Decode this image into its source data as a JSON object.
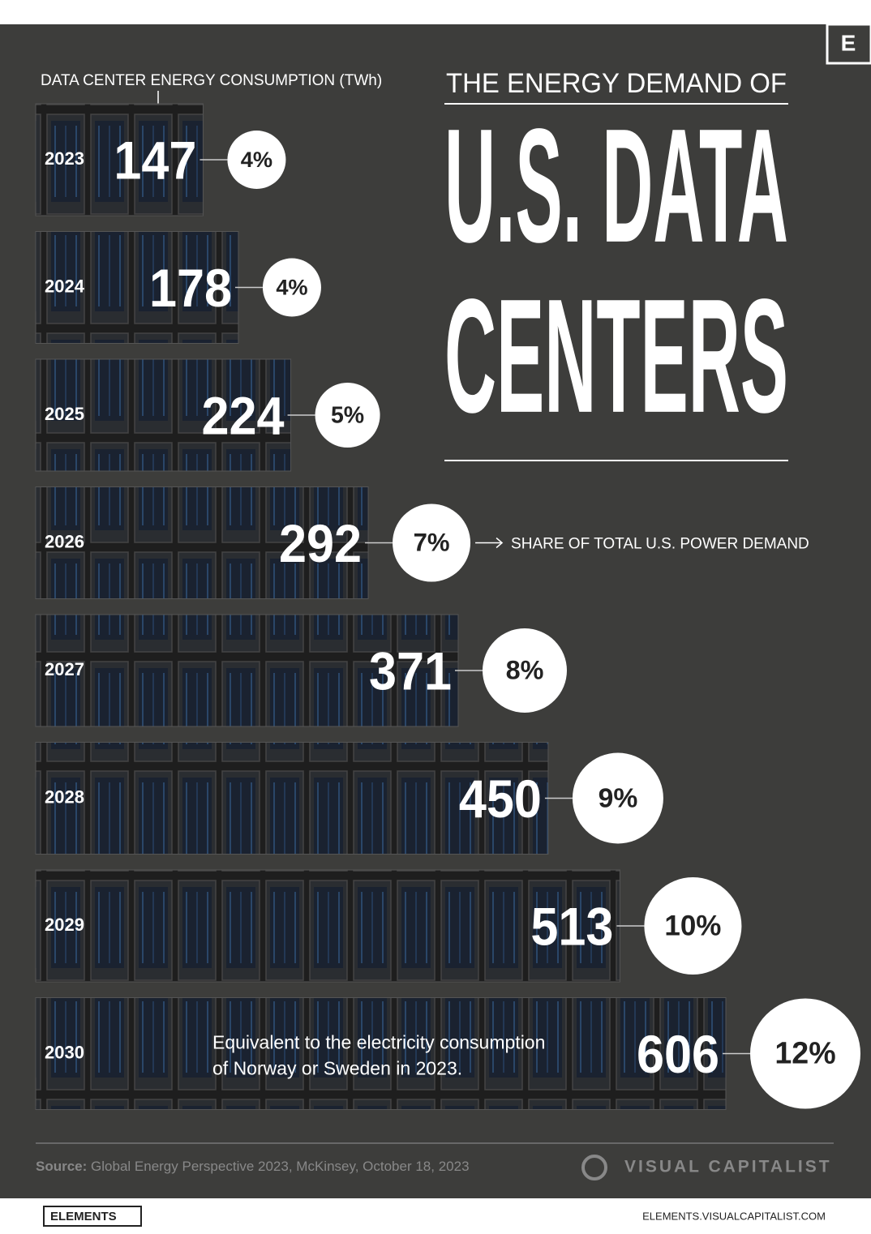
{
  "chart_data": {
    "type": "bar",
    "orientation": "horizontal",
    "supertitle": "THE ENERGY DEMAND OF",
    "title": [
      "U.S. DATA",
      "CENTERS"
    ],
    "categories": [
      "2023",
      "2024",
      "2025",
      "2026",
      "2027",
      "2028",
      "2029",
      "2030"
    ],
    "series": [
      {
        "name": "DATA CENTER ENERGY CONSUMPTION (TWh)",
        "color": "#2b2b2b",
        "values": [
          147,
          178,
          224,
          292,
          371,
          450,
          513,
          606
        ]
      },
      {
        "name": "SHARE OF TOTAL U.S. POWER DEMAND",
        "color": "#ffffff",
        "values": [
          4,
          4,
          5,
          7,
          8,
          9,
          10,
          12
        ],
        "value_labels": [
          "4%",
          "4%",
          "5%",
          "7%",
          "8%",
          "9%",
          "10%",
          "12%"
        ]
      }
    ],
    "annotation": [
      "Equivalent to the electricity consumption",
      "of Norway or Sweden in 2023."
    ],
    "source_label": "Source:",
    "source": "Global Energy Perspective 2023, McKinsey, October 18, 2023",
    "brand": "VISUAL CAPITALIST",
    "logo_letter": "E",
    "footer_logo": "ELEMENTS",
    "footer_url": "ELEMENTS.VISUALCAPITALIST.COM"
  }
}
